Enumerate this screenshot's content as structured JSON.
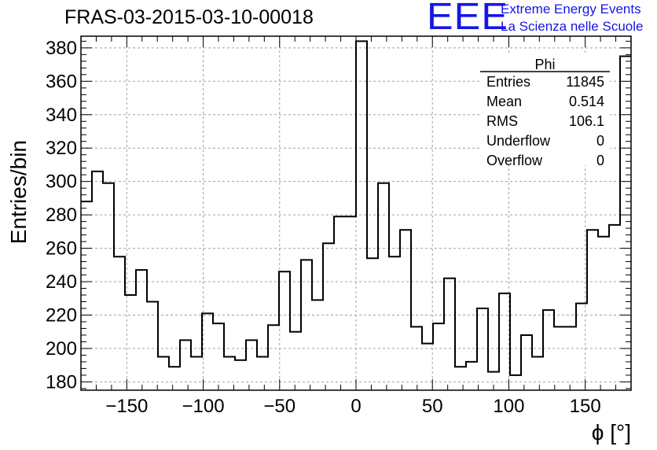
{
  "chart_data": {
    "type": "histogram",
    "title": "FRAS-03-2015-03-10-00018",
    "xlabel": "ϕ [°]",
    "ylabel": "Entries/bin",
    "xlim": [
      -180,
      180
    ],
    "ylim": [
      175,
      387
    ],
    "xticks": [
      -150,
      -100,
      -50,
      0,
      50,
      100,
      150
    ],
    "yticks": [
      180,
      200,
      220,
      240,
      260,
      280,
      300,
      320,
      340,
      360,
      380
    ],
    "grid": true,
    "bin_width": 7.2,
    "bin_edges_start": -180,
    "values": [
      288,
      306,
      299,
      255,
      232,
      247,
      228,
      195,
      189,
      205,
      195,
      221,
      215,
      195,
      193,
      205,
      195,
      214,
      246,
      210,
      253,
      229,
      263,
      279,
      279,
      384,
      254,
      299,
      255,
      271,
      213,
      203,
      215,
      242,
      189,
      192,
      224,
      186,
      233,
      184,
      208,
      195,
      223,
      213,
      213,
      227,
      271,
      267,
      274,
      375
    ],
    "stats": {
      "name": "Phi",
      "rows": [
        {
          "label": "Entries",
          "value": "11845"
        },
        {
          "label": "Mean",
          "value": "0.514"
        },
        {
          "label": "RMS",
          "value": "106.1"
        },
        {
          "label": "Underflow",
          "value": "0"
        },
        {
          "label": "Overflow",
          "value": "0"
        }
      ]
    }
  },
  "logo": {
    "mark": "EEE",
    "line1": "Extreme Energy Events",
    "line2": "La Scienza nelle Scuole"
  }
}
